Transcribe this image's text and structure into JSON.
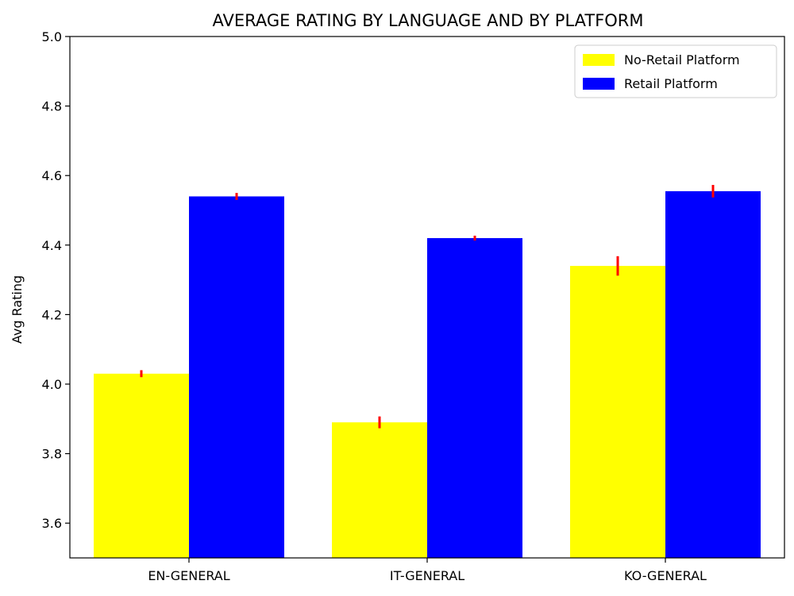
{
  "chart_data": {
    "type": "bar",
    "title": "AVERAGE RATING BY LANGUAGE AND BY PLATFORM",
    "xlabel": "",
    "ylabel": "Avg Rating",
    "categories": [
      "EN-GENERAL",
      "IT-GENERAL",
      "KO-GENERAL"
    ],
    "ylim": [
      3.5,
      5.0
    ],
    "yticks": [
      3.6,
      3.8,
      4.0,
      4.2,
      4.4,
      4.6,
      4.8,
      5.0
    ],
    "ytick_labels": [
      "3.6",
      "3.8",
      "4.0",
      "4.2",
      "4.4",
      "4.6",
      "4.8",
      "5.0"
    ],
    "series": [
      {
        "name": "No-Retail Platform",
        "color": "#ffff00",
        "values": [
          4.03,
          3.89,
          4.34
        ],
        "errors": [
          0.01,
          0.017,
          0.028
        ]
      },
      {
        "name": "Retail Platform",
        "color": "#0000ff",
        "values": [
          4.54,
          4.42,
          4.555
        ],
        "errors": [
          0.01,
          0.007,
          0.018
        ]
      }
    ],
    "error_bar_color": "#ff0000",
    "legend": {
      "position": "top-right"
    },
    "grid": false
  }
}
